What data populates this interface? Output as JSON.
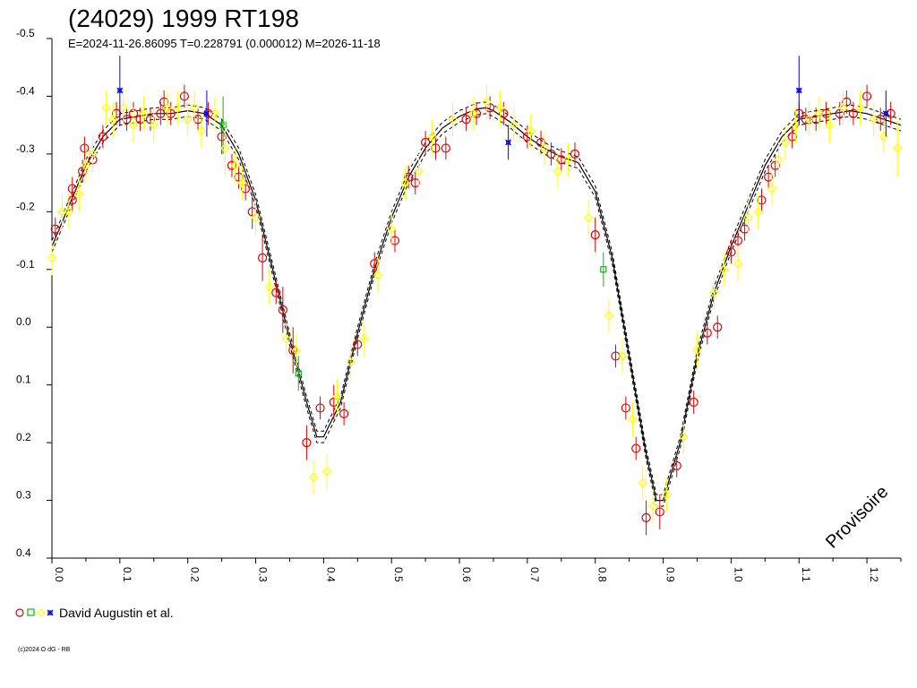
{
  "chart_data": {
    "type": "scatter",
    "title": "(24029) 1999 RT198",
    "subtitle": "E=2024-11-26.86095    T=0.228791 (0.000012)    M=2026-11-18",
    "x_ticks": [
      "0.0",
      "0.1",
      "0.2",
      "0.3",
      "0.4",
      "0.5",
      "0.6",
      "0.7",
      "0.8",
      "0.9",
      "1.0",
      "1.1",
      "1.2"
    ],
    "y_ticks": [
      "-0.5",
      "-0.4",
      "-0.3",
      "-0.2",
      "-0.1",
      "0.0",
      "0.1",
      "0.2",
      "0.3",
      "0.4"
    ],
    "xlim": [
      0.0,
      1.25
    ],
    "ylim": [
      -0.5,
      0.4
    ],
    "y_inverted": true,
    "legend_text": "David Augustin et al.",
    "watermark": "Provisoire",
    "credit": "(c)2024 O dG - RB",
    "colors": {
      "red": "#e00000",
      "green": "#00c000",
      "yellow": "#ffff00",
      "blue": "#0000e0",
      "fit": "#000000"
    },
    "fit_curve": {
      "x": [
        0.0,
        0.025,
        0.05,
        0.075,
        0.1,
        0.125,
        0.15,
        0.175,
        0.2,
        0.225,
        0.25,
        0.275,
        0.3,
        0.325,
        0.35,
        0.375,
        0.39,
        0.4,
        0.425,
        0.45,
        0.475,
        0.5,
        0.525,
        0.55,
        0.575,
        0.6,
        0.625,
        0.64,
        0.65,
        0.675,
        0.7,
        0.725,
        0.75,
        0.775,
        0.8,
        0.825,
        0.85,
        0.875,
        0.89,
        0.9,
        0.925,
        0.95,
        0.975,
        1.0,
        1.025,
        1.05,
        1.075,
        1.1,
        1.125,
        1.15,
        1.175,
        1.2,
        1.25
      ],
      "y": [
        -0.14,
        -0.21,
        -0.28,
        -0.33,
        -0.36,
        -0.365,
        -0.37,
        -0.37,
        -0.375,
        -0.37,
        -0.35,
        -0.3,
        -0.22,
        -0.1,
        0.02,
        0.13,
        0.19,
        0.19,
        0.13,
        0.01,
        -0.1,
        -0.19,
        -0.26,
        -0.31,
        -0.345,
        -0.365,
        -0.378,
        -0.38,
        -0.375,
        -0.355,
        -0.33,
        -0.31,
        -0.295,
        -0.285,
        -0.235,
        -0.12,
        0.05,
        0.22,
        0.3,
        0.3,
        0.2,
        0.05,
        -0.06,
        -0.14,
        -0.21,
        -0.28,
        -0.33,
        -0.36,
        -0.365,
        -0.37,
        -0.375,
        -0.37,
        -0.35
      ],
      "envelope": 0.01
    },
    "series": [
      {
        "color": "red",
        "marker": "circle",
        "points": [
          [
            0.005,
            -0.17
          ],
          [
            0.03,
            -0.22
          ],
          [
            0.03,
            -0.24
          ],
          [
            0.045,
            -0.27
          ],
          [
            0.048,
            -0.31
          ],
          [
            0.06,
            -0.29
          ],
          [
            0.075,
            -0.33
          ],
          [
            0.095,
            -0.37
          ],
          [
            0.11,
            -0.36
          ],
          [
            0.12,
            -0.37
          ],
          [
            0.13,
            -0.36
          ],
          [
            0.145,
            -0.36
          ],
          [
            0.16,
            -0.37
          ],
          [
            0.165,
            -0.39
          ],
          [
            0.175,
            -0.37
          ],
          [
            0.195,
            -0.4
          ],
          [
            0.215,
            -0.36
          ],
          [
            0.23,
            -0.37
          ],
          [
            0.25,
            -0.33
          ],
          [
            0.265,
            -0.28
          ],
          [
            0.275,
            -0.26
          ],
          [
            0.285,
            -0.24
          ],
          [
            0.295,
            -0.2
          ],
          [
            0.31,
            -0.12
          ],
          [
            0.33,
            -0.06
          ],
          [
            0.34,
            -0.03
          ],
          [
            0.355,
            0.04
          ],
          [
            0.375,
            0.2
          ],
          [
            0.395,
            0.14
          ],
          [
            0.415,
            0.13
          ],
          [
            0.43,
            0.15
          ],
          [
            0.45,
            0.03
          ],
          [
            0.475,
            -0.11
          ],
          [
            0.505,
            -0.15
          ],
          [
            0.525,
            -0.26
          ],
          [
            0.535,
            -0.25
          ],
          [
            0.55,
            -0.32
          ],
          [
            0.565,
            -0.31
          ],
          [
            0.58,
            -0.31
          ],
          [
            0.61,
            -0.36
          ],
          [
            0.625,
            -0.37
          ],
          [
            0.645,
            -0.38
          ],
          [
            0.665,
            -0.37
          ],
          [
            0.7,
            -0.33
          ],
          [
            0.72,
            -0.32
          ],
          [
            0.735,
            -0.3
          ],
          [
            0.75,
            -0.29
          ],
          [
            0.77,
            -0.3
          ],
          [
            0.8,
            -0.16
          ],
          [
            0.83,
            0.05
          ],
          [
            0.845,
            0.14
          ],
          [
            0.86,
            0.21
          ],
          [
            0.875,
            0.33
          ],
          [
            0.895,
            0.32
          ],
          [
            0.92,
            0.24
          ],
          [
            0.945,
            0.13
          ],
          [
            0.965,
            0.01
          ],
          [
            0.98,
            0.0
          ],
          [
            1.0,
            -0.13
          ],
          [
            1.01,
            -0.15
          ],
          [
            1.02,
            -0.17
          ],
          [
            1.045,
            -0.22
          ],
          [
            1.055,
            -0.26
          ],
          [
            1.065,
            -0.28
          ],
          [
            1.09,
            -0.33
          ],
          [
            1.1,
            -0.37
          ],
          [
            1.11,
            -0.36
          ],
          [
            1.125,
            -0.36
          ],
          [
            1.14,
            -0.37
          ],
          [
            1.16,
            -0.37
          ],
          [
            1.17,
            -0.39
          ],
          [
            1.18,
            -0.37
          ],
          [
            1.2,
            -0.4
          ],
          [
            1.22,
            -0.36
          ],
          [
            1.235,
            -0.37
          ]
        ],
        "errors": [
          0.02,
          0.02,
          0.02,
          0.02,
          0.02,
          0.02,
          0.02,
          0.02,
          0.02,
          0.02,
          0.02,
          0.02,
          0.02,
          0.02,
          0.02,
          0.02,
          0.02,
          0.02,
          0.03,
          0.02,
          0.02,
          0.02,
          0.03,
          0.04,
          0.02,
          0.04,
          0.04,
          0.03,
          0.02,
          0.03,
          0.02,
          0.02,
          0.02,
          0.02,
          0.02,
          0.02,
          0.02,
          0.02,
          0.02,
          0.02,
          0.02,
          0.02,
          0.02,
          0.02,
          0.02,
          0.02,
          0.02,
          0.02,
          0.03,
          0.02,
          0.02,
          0.02,
          0.03,
          0.03,
          0.02,
          0.02,
          0.02,
          0.02,
          0.02,
          0.02,
          0.02,
          0.02,
          0.02,
          0.02,
          0.02,
          0.02,
          0.02,
          0.02,
          0.02,
          0.02,
          0.02,
          0.02,
          0.02,
          0.02,
          0.02
        ]
      },
      {
        "color": "green",
        "marker": "square",
        "points": [
          [
            0.252,
            -0.35
          ],
          [
            0.363,
            0.08
          ],
          [
            0.812,
            -0.1
          ]
        ],
        "errors": [
          0.05,
          0.03,
          0.03
        ]
      },
      {
        "color": "yellow",
        "marker": "diamond",
        "points": [
          [
            0.0,
            -0.12
          ],
          [
            0.015,
            -0.2
          ],
          [
            0.025,
            -0.2
          ],
          [
            0.04,
            -0.23
          ],
          [
            0.05,
            -0.28
          ],
          [
            0.06,
            -0.3
          ],
          [
            0.08,
            -0.38
          ],
          [
            0.09,
            -0.36
          ],
          [
            0.105,
            -0.38
          ],
          [
            0.12,
            -0.35
          ],
          [
            0.135,
            -0.37
          ],
          [
            0.15,
            -0.35
          ],
          [
            0.17,
            -0.38
          ],
          [
            0.185,
            -0.38
          ],
          [
            0.2,
            -0.36
          ],
          [
            0.21,
            -0.38
          ],
          [
            0.22,
            -0.34
          ],
          [
            0.24,
            -0.37
          ],
          [
            0.255,
            -0.31
          ],
          [
            0.27,
            -0.28
          ],
          [
            0.28,
            -0.25
          ],
          [
            0.3,
            -0.19
          ],
          [
            0.32,
            -0.07
          ],
          [
            0.345,
            0.02
          ],
          [
            0.36,
            0.04
          ],
          [
            0.385,
            0.26
          ],
          [
            0.405,
            0.25
          ],
          [
            0.42,
            0.12
          ],
          [
            0.44,
            0.06
          ],
          [
            0.46,
            0.02
          ],
          [
            0.48,
            -0.09
          ],
          [
            0.5,
            -0.17
          ],
          [
            0.52,
            -0.25
          ],
          [
            0.54,
            -0.27
          ],
          [
            0.56,
            -0.33
          ],
          [
            0.59,
            -0.36
          ],
          [
            0.62,
            -0.37
          ],
          [
            0.64,
            -0.39
          ],
          [
            0.66,
            -0.38
          ],
          [
            0.68,
            -0.35
          ],
          [
            0.705,
            -0.34
          ],
          [
            0.725,
            -0.31
          ],
          [
            0.745,
            -0.27
          ],
          [
            0.76,
            -0.29
          ],
          [
            0.79,
            -0.19
          ],
          [
            0.82,
            -0.02
          ],
          [
            0.84,
            0.05
          ],
          [
            0.855,
            0.16
          ],
          [
            0.87,
            0.27
          ],
          [
            0.885,
            0.31
          ],
          [
            0.905,
            0.29
          ],
          [
            0.93,
            0.19
          ],
          [
            0.95,
            0.04
          ],
          [
            0.975,
            -0.06
          ],
          [
            0.99,
            -0.1
          ],
          [
            1.01,
            -0.11
          ],
          [
            1.025,
            -0.19
          ],
          [
            1.04,
            -0.2
          ],
          [
            1.06,
            -0.24
          ],
          [
            1.07,
            -0.29
          ],
          [
            1.08,
            -0.32
          ],
          [
            1.095,
            -0.35
          ],
          [
            1.115,
            -0.36
          ],
          [
            1.13,
            -0.37
          ],
          [
            1.145,
            -0.35
          ],
          [
            1.165,
            -0.38
          ],
          [
            1.19,
            -0.38
          ],
          [
            1.21,
            -0.36
          ],
          [
            1.225,
            -0.33
          ],
          [
            1.245,
            -0.31
          ]
        ],
        "errors": [
          0.03,
          0.03,
          0.03,
          0.03,
          0.03,
          0.03,
          0.03,
          0.03,
          0.03,
          0.03,
          0.03,
          0.03,
          0.03,
          0.03,
          0.03,
          0.03,
          0.03,
          0.03,
          0.05,
          0.03,
          0.03,
          0.03,
          0.03,
          0.03,
          0.03,
          0.03,
          0.03,
          0.03,
          0.03,
          0.03,
          0.03,
          0.03,
          0.03,
          0.03,
          0.03,
          0.03,
          0.03,
          0.03,
          0.03,
          0.03,
          0.03,
          0.03,
          0.03,
          0.03,
          0.03,
          0.03,
          0.03,
          0.03,
          0.03,
          0.03,
          0.03,
          0.03,
          0.03,
          0.03,
          0.03,
          0.03,
          0.03,
          0.03,
          0.03,
          0.03,
          0.03,
          0.03,
          0.03,
          0.03,
          0.03,
          0.03,
          0.03,
          0.03,
          0.03,
          0.05
        ]
      },
      {
        "color": "blue",
        "marker": "star",
        "points": [
          [
            0.1,
            -0.41
          ],
          [
            0.228,
            -0.37
          ],
          [
            0.672,
            -0.32
          ],
          [
            1.1,
            -0.41
          ],
          [
            1.228,
            -0.37
          ]
        ],
        "errors": [
          0.06,
          0.04,
          0.03,
          0.06,
          0.04
        ]
      }
    ]
  }
}
